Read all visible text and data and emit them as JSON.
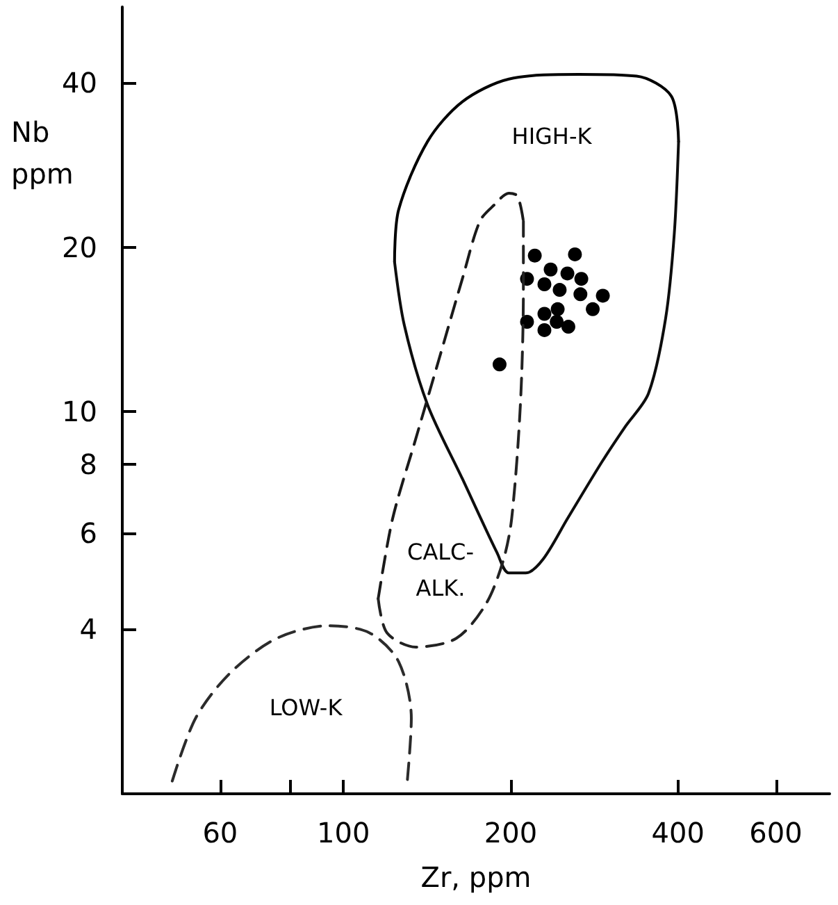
{
  "chart_data": {
    "type": "scatter",
    "xlabel": "Zr, ppm",
    "ylabel": "Nb\nppm",
    "log": "xy",
    "grid": false,
    "marker": "circle",
    "xlim": [
      40,
      750
    ],
    "ylim": [
      2,
      55
    ],
    "xticks": [
      60,
      {
        "value": 80,
        "label": null
      },
      100,
      200,
      400,
      600
    ],
    "yticks": [
      4,
      6,
      8,
      10,
      20,
      40
    ],
    "series": [
      {
        "color": "#000000",
        "x": [
          221,
          261,
          236,
          214,
          253,
          268,
          230,
          245,
          267,
          293,
          281,
          243,
          230,
          214,
          242,
          254,
          230,
          191
        ],
        "values": [
          19.3,
          19.4,
          18.2,
          17.5,
          17.9,
          17.5,
          17.1,
          16.7,
          16.4,
          16.3,
          15.4,
          15.4,
          15.1,
          14.6,
          14.6,
          14.3,
          14.1,
          12.2
        ]
      },
      {
        "type": "line",
        "marker": "none",
        "line_style": "solid",
        "color": "#000000",
        "x": [
          123.6,
          125.7,
          141.7,
          163.7,
          198.5,
          265,
          337,
          389,
          401
        ],
        "values": [
          18.8,
          23.4,
          31.2,
          36.9,
          40.6,
          41.4,
          41.1,
          37.8,
          31.2
        ]
      },
      {
        "type": "line",
        "marker": "none",
        "line_style": "solid",
        "color": "#0d0d0d",
        "x": [
          123.6,
          128.7,
          141.7,
          163.7,
          189,
          198.5,
          213,
          229,
          253,
          292,
          321,
          354,
          380,
          394,
          401
        ],
        "values": [
          18.8,
          14.4,
          10.3,
          7.54,
          5.52,
          5.07,
          5.07,
          5.38,
          6.37,
          8.1,
          9.37,
          10.8,
          14.8,
          21.2,
          31.2
        ]
      },
      {
        "type": "line",
        "marker": "none",
        "line_style": "dashed",
        "color": "#1a1a1a",
        "x": [
          115.5,
          122.6,
          135,
          148.7,
          163.7,
          176,
          186.9,
          198.5,
          205.7,
          210.8
        ],
        "values": [
          4.55,
          6.37,
          8.93,
          12.5,
          17.5,
          22.3,
          23.9,
          25.1,
          24.8,
          22.3
        ]
      },
      {
        "type": "line",
        "marker": "none",
        "line_style": "dashed",
        "color": "#222222",
        "x": [
          115.5,
          119.8,
          135,
          159.7,
          180.3,
          193.7,
          200.8,
          208.2,
          210.8,
          210.8
        ],
        "values": [
          4.55,
          3.94,
          3.71,
          3.85,
          4.44,
          5.32,
          6.37,
          10.3,
          16.7,
          22.3
        ]
      },
      {
        "type": "line",
        "marker": "none",
        "line_style": "dashed",
        "color": "#2b2b2b",
        "x": [
          49.2,
          54.2,
          62.6,
          75.9,
          94.1,
          111.4,
          125.7,
          132.5,
          130.3
        ],
        "values": [
          2.11,
          2.75,
          3.33,
          3.85,
          4.06,
          3.94,
          3.49,
          2.75,
          2.11
        ]
      }
    ],
    "annotations": [
      "HIGH-K",
      "CALC-\nALK.",
      "LOW-K"
    ]
  }
}
